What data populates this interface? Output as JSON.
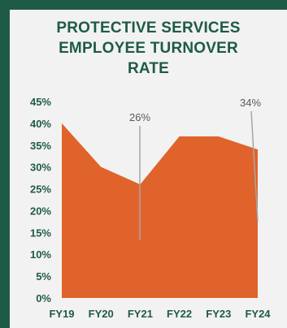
{
  "title_lines": [
    "PROTECTIVE SERVICES",
    "EMPLOYEE TURNOVER",
    "RATE"
  ],
  "colors": {
    "frame": "#1f5a47",
    "panel": "#f2f2f2",
    "area": "#e0632b",
    "text": "#1f5a47",
    "leader": "#a6a6a6"
  },
  "chart_data": {
    "type": "area",
    "title": "PROTECTIVE SERVICES EMPLOYEE TURNOVER RATE",
    "categories": [
      "FY19",
      "FY20",
      "FY21",
      "FY22",
      "FY23",
      "FY24"
    ],
    "series": [
      {
        "values": [
          40,
          30,
          26,
          37,
          37,
          34
        ]
      }
    ],
    "yticks": [
      "0%",
      "5%",
      "10%",
      "15%",
      "20%",
      "25%",
      "30%",
      "35%",
      "40%",
      "45%"
    ],
    "ylim": [
      0,
      45
    ],
    "data_labels": [
      {
        "category": "FY21",
        "text": "26%"
      },
      {
        "category": "FY24",
        "text": "34%"
      }
    ],
    "grid": false,
    "legend": "none"
  }
}
